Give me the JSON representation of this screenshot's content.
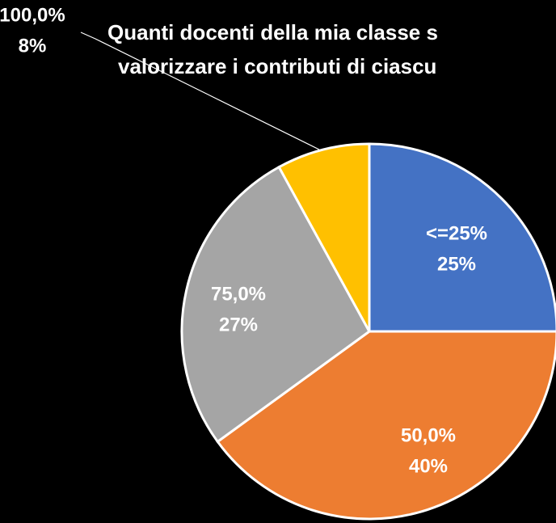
{
  "chart_data": {
    "type": "pie",
    "title": [
      "Quanti docenti della mia classe s",
      "valorizzare i contributi di ciascu"
    ],
    "categories": [
      "<=25%",
      "50,0%",
      "75,0%",
      "100,0%"
    ],
    "values": [
      25,
      40,
      27,
      8
    ],
    "value_labels": [
      "25%",
      "40%",
      "27%",
      "8%"
    ],
    "colors": [
      "#4472c4",
      "#ed7d31",
      "#a5a5a5",
      "#ffc000"
    ]
  }
}
